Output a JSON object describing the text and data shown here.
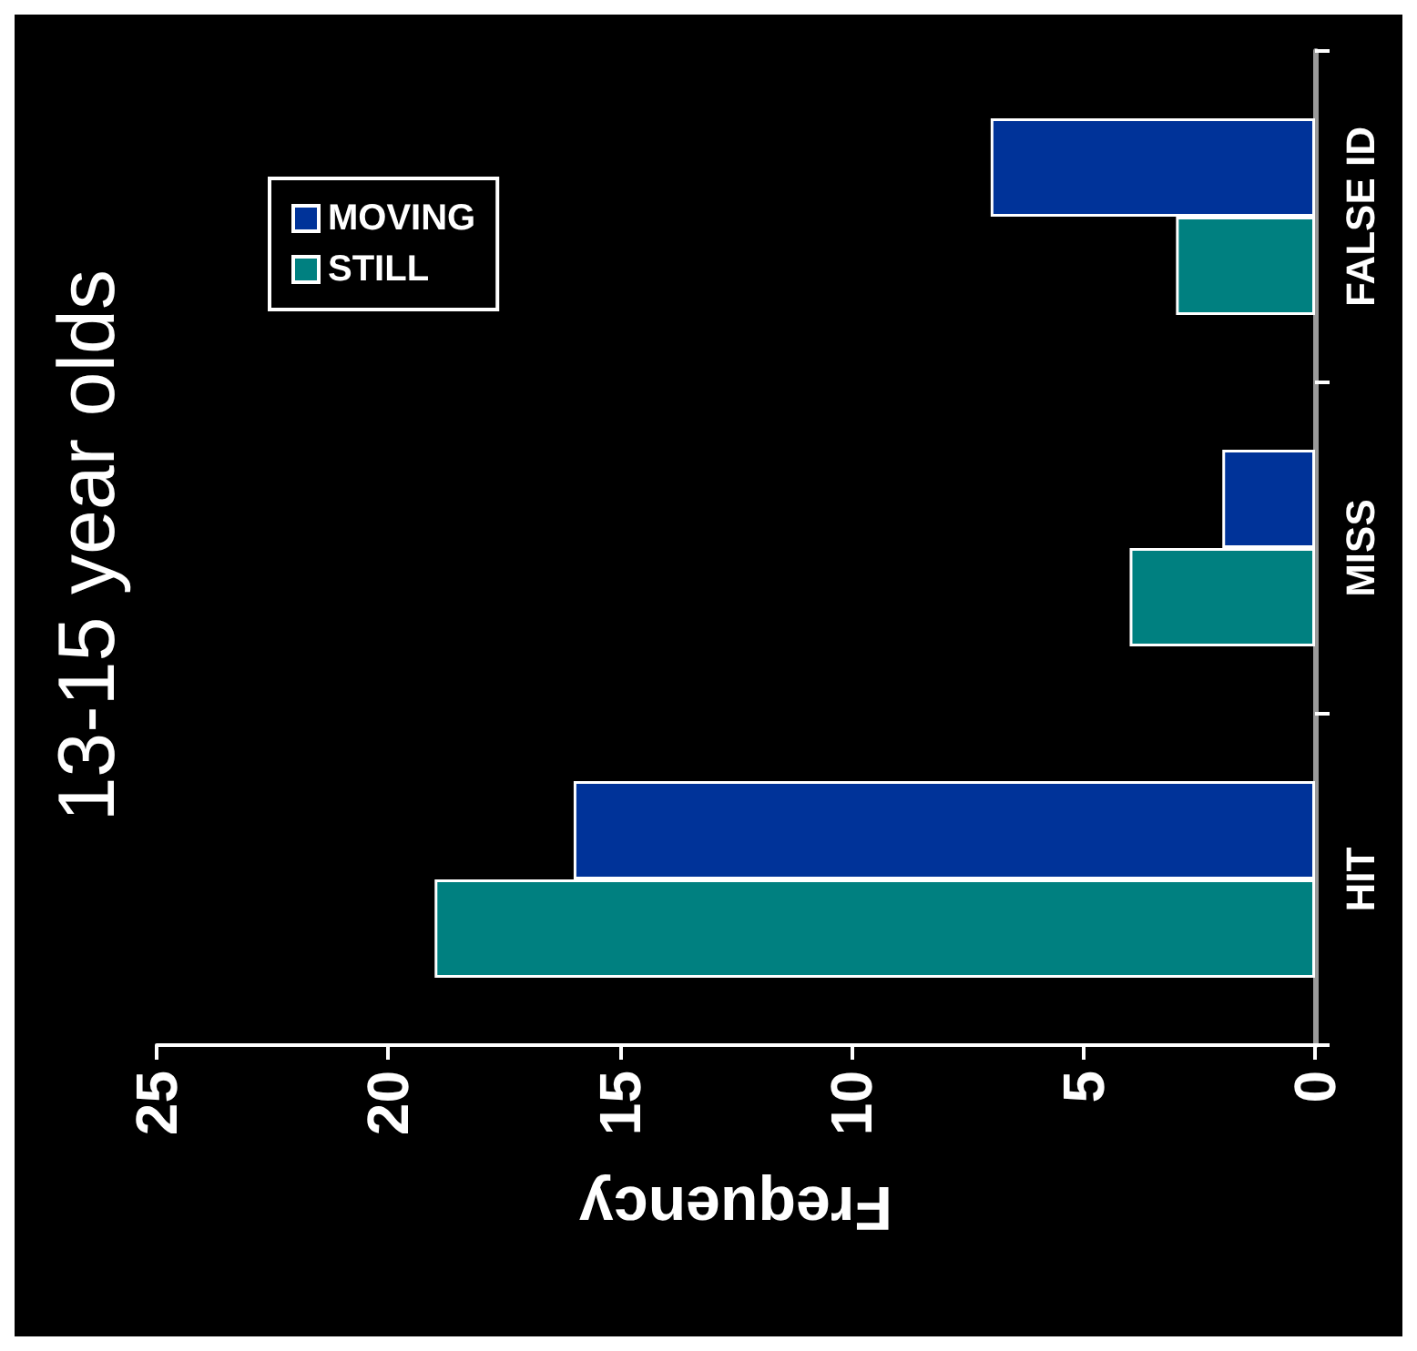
{
  "chart_data": {
    "type": "bar",
    "orientation": "horizontal",
    "title": "13-15 year olds",
    "xlabel": "Frequency",
    "categories": [
      "FALSE ID",
      "MISS",
      "HIT"
    ],
    "series": [
      {
        "name": "MOVING",
        "color": "#003399",
        "values": [
          7,
          2,
          16
        ]
      },
      {
        "name": "STILL",
        "color": "#008080",
        "values": [
          3,
          4,
          19
        ]
      }
    ],
    "xlim": [
      25,
      0
    ],
    "xticks": [
      0,
      5,
      10,
      15,
      20,
      25
    ],
    "grid": false,
    "legend": "top left"
  }
}
